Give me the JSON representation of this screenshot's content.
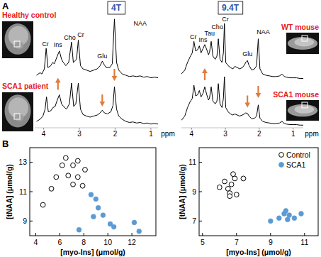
{
  "panel_labels": [
    "A",
    "B"
  ],
  "headers": [
    "4T",
    "9.4T"
  ],
  "chart_data": [
    {
      "type": "line",
      "title": "Healthy control",
      "xlim": [
        4.25,
        0.8
      ],
      "ylim": [
        0,
        100
      ],
      "tick_labels": false,
      "series": [
        {
          "color": "#000000",
          "x": [
            4.2,
            4.1,
            4.05,
            3.98,
            3.93,
            3.88,
            3.8,
            3.75,
            3.7,
            3.62,
            3.56,
            3.5,
            3.45,
            3.38,
            3.3,
            3.22,
            3.17,
            3.08,
            3.03,
            2.97,
            2.9,
            2.8,
            2.7,
            2.6,
            2.5,
            2.42,
            2.36,
            2.3,
            2.25,
            2.15,
            2.08,
            2.02,
            1.96,
            1.9,
            1.8,
            1.7,
            1.6,
            1.5,
            1.4,
            1.3,
            1.2,
            1.1,
            1.0,
            0.9,
            0.8
          ],
          "values": [
            10,
            14,
            12,
            20,
            52,
            22,
            25,
            30,
            28,
            40,
            48,
            35,
            30,
            25,
            30,
            62,
            30,
            35,
            65,
            25,
            20,
            18,
            16,
            18,
            20,
            25,
            32,
            26,
            22,
            22,
            28,
            98,
            30,
            18,
            12,
            10,
            8,
            9,
            8,
            9,
            7,
            8,
            6,
            7,
            6
          ]
        }
      ],
      "annotations": [
        {
          "text": "Cr",
          "x": 3.95,
          "y": 56
        },
        {
          "text": "Ins",
          "x": 3.6,
          "y": 54
        },
        {
          "text": "Cho",
          "x": 3.27,
          "y": 66
        },
        {
          "text": "Cr",
          "x": 2.96,
          "y": 70
        },
        {
          "text": "Glu",
          "x": 2.36,
          "y": 37
        },
        {
          "text": "NAA",
          "x": 1.3,
          "y": 88
        }
      ]
    },
    {
      "type": "line",
      "title": "SCA1 patient",
      "xlim": [
        4.25,
        0.8
      ],
      "ylim": [
        0,
        100
      ],
      "xticks": [
        4,
        3,
        2,
        1
      ],
      "xlabel": "ppm",
      "tick_labels": "x",
      "series": [
        {
          "color": "#000000",
          "x": [
            4.2,
            4.1,
            4.02,
            3.96,
            3.92,
            3.87,
            3.8,
            3.74,
            3.68,
            3.62,
            3.56,
            3.5,
            3.44,
            3.36,
            3.28,
            3.22,
            3.16,
            3.1,
            3.03,
            2.97,
            2.9,
            2.8,
            2.7,
            2.6,
            2.5,
            2.42,
            2.36,
            2.3,
            2.22,
            2.12,
            2.06,
            2.02,
            1.96,
            1.9,
            1.8,
            1.7,
            1.6,
            1.5,
            1.4,
            1.3,
            1.2,
            1.1,
            1.0,
            0.9,
            0.8
          ],
          "values": [
            12,
            16,
            22,
            35,
            58,
            30,
            32,
            38,
            40,
            52,
            62,
            45,
            40,
            35,
            45,
            84,
            40,
            45,
            84,
            35,
            25,
            22,
            20,
            22,
            24,
            28,
            33,
            28,
            26,
            30,
            42,
            77,
            35,
            22,
            16,
            12,
            10,
            11,
            9,
            10,
            8,
            9,
            7,
            8,
            7
          ]
        }
      ],
      "arrows": [
        {
          "x": 3.6,
          "y": 82,
          "direction": "up"
        },
        {
          "x": 2.36,
          "y": 52,
          "direction": "down"
        },
        {
          "x": 2.02,
          "y": 100,
          "direction": "down"
        }
      ]
    },
    {
      "type": "line",
      "title": "WT mouse",
      "xlim": [
        4.3,
        0.7
      ],
      "ylim": [
        0,
        100
      ],
      "tick_labels": false,
      "series": [
        {
          "color": "#000000",
          "x": [
            4.3,
            4.2,
            4.12,
            4.05,
            3.98,
            3.93,
            3.88,
            3.82,
            3.77,
            3.72,
            3.66,
            3.61,
            3.55,
            3.5,
            3.47,
            3.42,
            3.37,
            3.3,
            3.25,
            3.21,
            3.16,
            3.1,
            3.06,
            3.03,
            2.99,
            2.92,
            2.85,
            2.78,
            2.72,
            2.65,
            2.58,
            2.5,
            2.44,
            2.4,
            2.35,
            2.3,
            2.22,
            2.14,
            2.08,
            2.03,
            1.98,
            1.9,
            1.8,
            1.7,
            1.6,
            1.5,
            1.4,
            1.33,
            1.26,
            1.2,
            1.1,
            1.0,
            0.9,
            0.8,
            0.7
          ],
          "values": [
            12,
            18,
            30,
            38,
            45,
            63,
            48,
            50,
            56,
            45,
            52,
            58,
            50,
            42,
            46,
            63,
            40,
            35,
            40,
            67,
            35,
            30,
            45,
            91,
            30,
            25,
            22,
            20,
            24,
            22,
            20,
            22,
            26,
            30,
            33,
            25,
            18,
            20,
            25,
            67,
            20,
            12,
            10,
            9,
            8,
            8,
            9,
            12,
            8,
            7,
            6,
            6,
            6,
            5,
            5
          ]
        }
      ],
      "annotations": [
        {
          "text": "Cr",
          "x": 3.95,
          "y": 67
        },
        {
          "text": "Ins",
          "x": 3.66,
          "y": 62
        },
        {
          "text": "Tau",
          "x": 3.47,
          "y": 72
        },
        {
          "text": "Cho",
          "x": 3.24,
          "y": 82
        },
        {
          "text": "Cr",
          "x": 3.0,
          "y": 95
        },
        {
          "text": "Glu",
          "x": 2.35,
          "y": 40
        },
        {
          "text": "NAA",
          "x": 1.88,
          "y": 75
        }
      ]
    },
    {
      "type": "line",
      "title": "SCA1 mouse",
      "xlim": [
        4.3,
        0.7
      ],
      "ylim": [
        0,
        100
      ],
      "xticks": [
        4,
        3,
        2,
        1
      ],
      "xlabel": "ppm",
      "tick_labels": "x",
      "series": [
        {
          "color": "#000000",
          "x": [
            4.3,
            4.2,
            4.12,
            4.05,
            3.98,
            3.93,
            3.88,
            3.82,
            3.77,
            3.72,
            3.66,
            3.61,
            3.55,
            3.5,
            3.47,
            3.42,
            3.37,
            3.3,
            3.25,
            3.21,
            3.16,
            3.1,
            3.06,
            3.03,
            2.99,
            2.92,
            2.85,
            2.78,
            2.72,
            2.65,
            2.58,
            2.5,
            2.44,
            2.4,
            2.35,
            2.3,
            2.22,
            2.14,
            2.08,
            2.03,
            1.98,
            1.9,
            1.8,
            1.7,
            1.6,
            1.5,
            1.4,
            1.33,
            1.26,
            1.2,
            1.1,
            1.0,
            0.9,
            0.8,
            0.7
          ],
          "values": [
            14,
            22,
            38,
            48,
            55,
            80,
            60,
            62,
            70,
            58,
            65,
            77,
            62,
            52,
            56,
            77,
            50,
            45,
            50,
            83,
            45,
            38,
            55,
            96,
            38,
            30,
            26,
            24,
            26,
            24,
            22,
            24,
            26,
            28,
            27,
            22,
            17,
            18,
            22,
            43,
            18,
            12,
            10,
            9,
            8,
            8,
            9,
            12,
            8,
            7,
            6,
            6,
            6,
            5,
            5
          ]
        }
      ],
      "arrows": [
        {
          "x": 3.61,
          "y": 100,
          "direction": "up"
        },
        {
          "x": 2.35,
          "y": 50,
          "direction": "down"
        },
        {
          "x": 2.03,
          "y": 68,
          "direction": "down"
        }
      ]
    },
    {
      "type": "scatter",
      "xlabel": "[myo-Ins] (μmol/g)",
      "ylabel": "[tNAA] (μmol/g)",
      "xlim": [
        3.5,
        14
      ],
      "ylim": [
        8,
        14
      ],
      "xticks": [
        4,
        6,
        8,
        10,
        12
      ],
      "yticks": [
        9,
        11,
        13
      ],
      "series": [
        {
          "color": "#000000",
          "marker": "open-circle",
          "x": [
            4.6,
            5.3,
            5.7,
            6.2,
            6.5,
            6.7,
            7.1,
            7.1,
            7.5,
            7.5,
            7.9,
            8.1
          ],
          "values": [
            10.1,
            11.2,
            12.0,
            12.8,
            13.3,
            12.1,
            11.5,
            12.8,
            13.1,
            12.0,
            11.4,
            12.5
          ]
        },
        {
          "color": "#5b9bd5",
          "marker": "circle",
          "x": [
            7.6,
            8.6,
            9.0,
            9.2,
            8.8,
            9.6,
            10.2,
            10.5,
            12.2,
            12.6
          ],
          "values": [
            8.4,
            10.8,
            10.5,
            9.9,
            9.3,
            9.4,
            8.8,
            8.6,
            8.9,
            8.3
          ]
        }
      ]
    },
    {
      "type": "scatter",
      "xlabel": "[myo-Ins] (μmol/g)",
      "ylabel": "[tNAA] (μmol/g)",
      "xlim": [
        4.8,
        11.8
      ],
      "ylim": [
        6,
        12
      ],
      "xticks": [
        5,
        7,
        9,
        11
      ],
      "yticks": [
        7,
        9,
        11
      ],
      "legend": "upper right",
      "series": [
        {
          "name": "Control",
          "color": "#000000",
          "marker": "open-circle",
          "x": [
            6.0,
            6.3,
            6.5,
            6.6,
            6.7,
            6.8,
            6.9,
            7.0,
            7.4,
            6.6
          ],
          "values": [
            9.3,
            9.7,
            9.2,
            8.9,
            9.5,
            10.2,
            9.9,
            8.8,
            9.9,
            8.7
          ]
        },
        {
          "name": "SCA1",
          "color": "#5b9bd5",
          "marker": "circle",
          "x": [
            9.0,
            9.5,
            9.8,
            10.0,
            10.1,
            10.4,
            10.8,
            9.9
          ],
          "values": [
            7.0,
            7.2,
            7.5,
            7.1,
            7.4,
            7.2,
            7.5,
            7.7
          ]
        }
      ]
    }
  ]
}
